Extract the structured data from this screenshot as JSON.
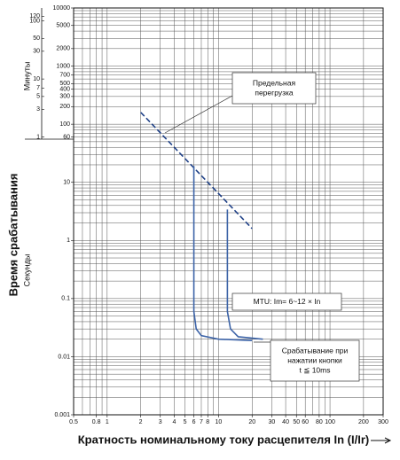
{
  "chart_data": {
    "type": "line",
    "xlog": true,
    "ylog": true,
    "grid": true,
    "y_title": "Время срабатывания",
    "y_label_seconds": "Секунды",
    "y2_label": "Минуты",
    "x_title": "Кратность номинальному току расцепителя In (I/Ir)",
    "xlim": [
      0.5,
      300
    ],
    "ylim": [
      0.001,
      10000
    ],
    "y2lim": [
      1.6666666666666667e-05,
      166.66666666666666
    ],
    "xticks": [
      0.5,
      0.8,
      1,
      2,
      3,
      4,
      5,
      6,
      7,
      8,
      10,
      20,
      30,
      40,
      50,
      60,
      80,
      100,
      200,
      300
    ],
    "yticks": [
      10000,
      5000,
      2000,
      1000,
      700,
      500,
      400,
      300,
      200,
      100,
      60,
      10,
      1,
      0.1,
      0.01,
      0.001
    ],
    "y2ticks": [
      120,
      100,
      50,
      30,
      10,
      7,
      5,
      3,
      1
    ],
    "xgrid": [
      0.5,
      0.6,
      0.7,
      0.8,
      0.9,
      1,
      2,
      3,
      4,
      5,
      6,
      7,
      8,
      9,
      10,
      20,
      30,
      40,
      50,
      60,
      70,
      80,
      90,
      100,
      200,
      300
    ],
    "ygrid": [
      0.001,
      0.002,
      0.003,
      0.004,
      0.005,
      0.006,
      0.007,
      0.008,
      0.009,
      0.01,
      0.02,
      0.03,
      0.04,
      0.05,
      0.06,
      0.07,
      0.08,
      0.09,
      0.1,
      0.2,
      0.3,
      0.4,
      0.5,
      0.6,
      0.7,
      0.8,
      0.9,
      1,
      2,
      3,
      4,
      5,
      6,
      7,
      8,
      9,
      10,
      20,
      30,
      40,
      50,
      60,
      70,
      80,
      90,
      100,
      200,
      300,
      400,
      500,
      600,
      700,
      800,
      900,
      1000,
      2000,
      3000,
      4000,
      5000,
      6000,
      7000,
      8000,
      9000,
      10000
    ],
    "series": [
      {
        "color": "#1d3f86",
        "dash": true,
        "x": [
          2,
          20
        ],
        "values": [
          160,
          1.6
        ]
      },
      {
        "color": "#3d64a8",
        "dash": false,
        "x": [
          6,
          6,
          6.3,
          7,
          10,
          20
        ],
        "values": [
          19,
          0.06,
          0.03,
          0.023,
          0.02,
          0.019
        ]
      },
      {
        "color": "#3d64a8",
        "dash": false,
        "x": [
          12,
          12,
          12.8,
          15,
          25
        ],
        "values": [
          3.4,
          0.06,
          0.03,
          0.022,
          0.02
        ]
      }
    ],
    "annotations": [
      {
        "lines": [
          "Предельная",
          "перегрузка"
        ]
      },
      {
        "lines": [
          "MTU: Im= 6~12 × In"
        ]
      },
      {
        "lines": [
          "Срабатывание при",
          "нажатии кнопки",
          "t ≦ 10ms"
        ]
      }
    ]
  }
}
